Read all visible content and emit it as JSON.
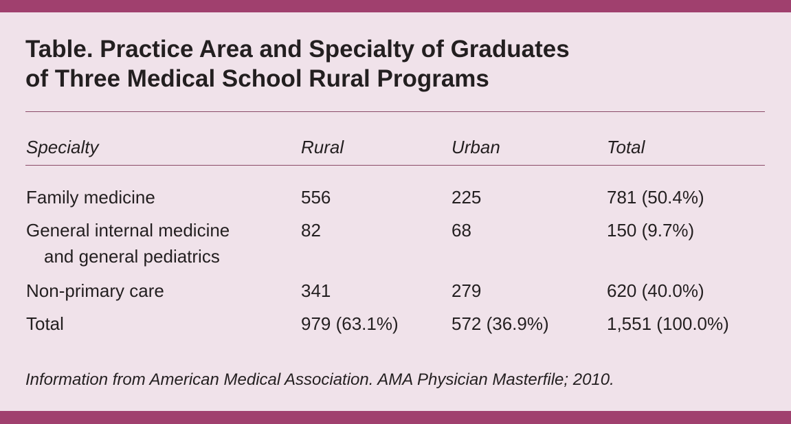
{
  "title": {
    "line1": "Table. Practice Area and Specialty of Graduates",
    "line2": "of Three Medical School Rural Programs"
  },
  "table": {
    "headers": [
      "Specialty",
      "Rural",
      "Urban",
      "Total"
    ],
    "rows": [
      {
        "specialty": "Family medicine",
        "rural": "556",
        "urban": "225",
        "total": "781 (50.4%)"
      },
      {
        "specialty": "General internal medicine",
        "specialty_cont": "and general pediatrics",
        "rural": "82",
        "urban": "68",
        "total": "150 (9.7%)"
      },
      {
        "specialty": "Non-primary care",
        "rural": "341",
        "urban": "279",
        "total": "620 (40.0%)"
      },
      {
        "specialty": "Total",
        "rural": "979 (63.1%)",
        "urban": "572 (36.9%)",
        "total": "1,551 (100.0%)"
      }
    ]
  },
  "footnote": "Information from American Medical Association. AMA Physician Masterfile; 2010.",
  "colors": {
    "background": "#f0e2ea",
    "accent_bar": "#a0406e",
    "rule": "#8a4a68",
    "text": "#231f20"
  }
}
